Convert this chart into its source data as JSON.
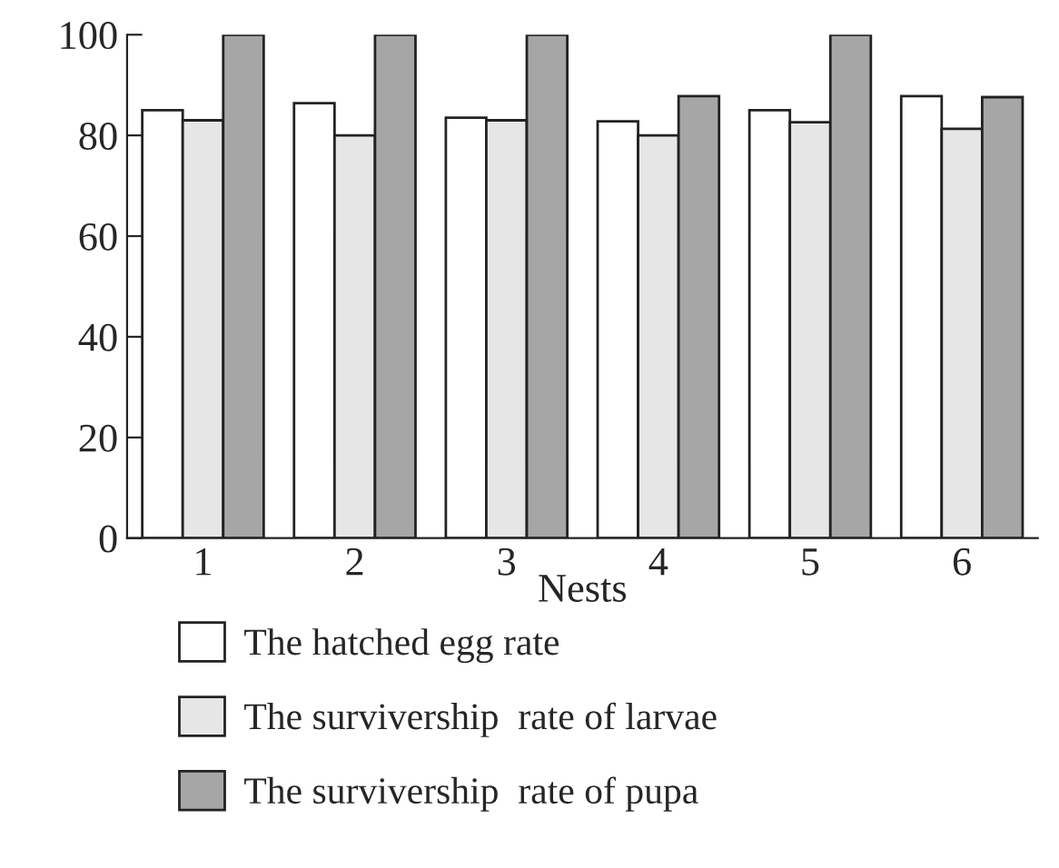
{
  "chart_data": {
    "type": "bar",
    "xlabel": "Nests",
    "categories": [
      "1",
      "2",
      "3",
      "4",
      "5",
      "6"
    ],
    "series": [
      {
        "name": "The hatched egg rate",
        "color": "#ffffff",
        "values": [
          85,
          86.4,
          83.5,
          82.8,
          85,
          87.8
        ]
      },
      {
        "name": "The survivership  rate of larvae",
        "color": "#e6e6e6",
        "values": [
          83,
          80,
          83,
          80,
          82.6,
          81.3
        ]
      },
      {
        "name": "The survivership  rate of pupa",
        "color": "#a6a6a6",
        "values": [
          100,
          100,
          100,
          87.8,
          100,
          87.6
        ]
      }
    ],
    "ylim": [
      0,
      100
    ],
    "yticks": [
      0,
      20,
      40,
      60,
      80,
      100
    ],
    "grid": false,
    "legend": "bottom"
  }
}
